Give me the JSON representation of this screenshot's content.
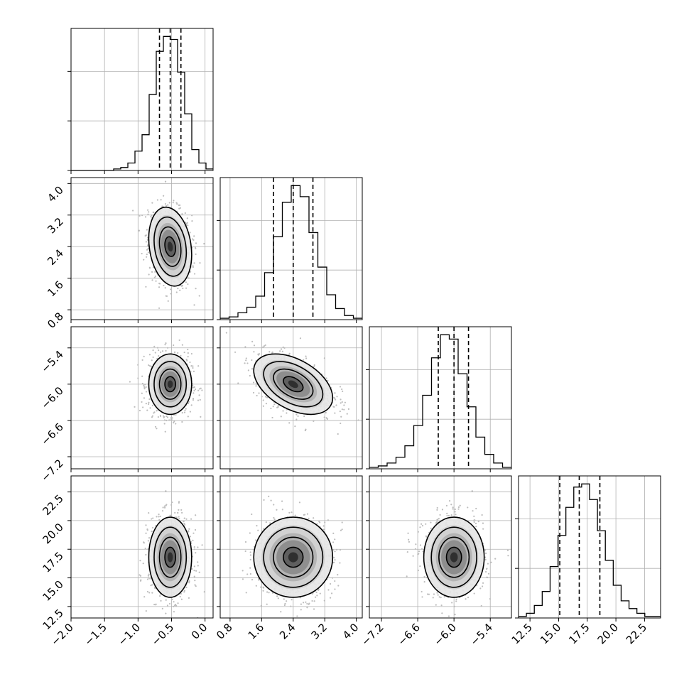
{
  "chart_data": {
    "type": "corner",
    "n_params": 4,
    "params": [
      {
        "ticks": [
          -2.0,
          -1.5,
          -1.0,
          -0.5,
          0.0
        ],
        "tick_labels": [
          "−2.0",
          "−1.5",
          "−1.0",
          "−0.5",
          "0.0"
        ],
        "range": [
          -2.0,
          0.12
        ],
        "median": -0.52,
        "q16": -0.68,
        "q84": -0.36,
        "sigma": 0.16
      },
      {
        "ticks": [
          0.8,
          1.6,
          2.4,
          3.2,
          4.0
        ],
        "tick_labels": [
          "0.8",
          "1.6",
          "2.4",
          "3.2",
          "4.0"
        ],
        "range": [
          0.55,
          4.15
        ],
        "median": 2.4,
        "q16": 1.9,
        "q84": 2.9,
        "sigma": 0.5
      },
      {
        "ticks": [
          -7.2,
          -6.6,
          -6.0,
          -5.4
        ],
        "tick_labels": [
          "−7.2",
          "−6.6",
          "−6.0",
          "−5.4"
        ],
        "range": [
          -7.4,
          -5.05
        ],
        "median": -6.0,
        "q16": -6.26,
        "q84": -5.76,
        "sigma": 0.25
      },
      {
        "ticks": [
          12.5,
          15.0,
          17.5,
          20.0,
          22.5
        ],
        "tick_labels": [
          "12.5",
          "15.0",
          "17.5",
          "20.0",
          "22.5"
        ],
        "range": [
          11.5,
          23.9
        ],
        "median": 16.8,
        "q16": 15.1,
        "q84": 18.6,
        "sigma": 1.75
      }
    ],
    "correlations": [
      [
        1,
        2,
        -0.2
      ],
      [
        1,
        3,
        0.0
      ],
      [
        2,
        3,
        -0.45
      ],
      [
        1,
        4,
        0.0
      ],
      [
        2,
        4,
        0.0
      ],
      [
        3,
        4,
        0.0
      ]
    ],
    "diagonal": [
      {
        "param": 1,
        "bin_lo": -2.0,
        "bin_hi": 0.12,
        "counts": [
          0,
          0,
          0,
          0,
          0,
          0,
          1,
          2,
          5,
          13,
          24,
          51,
          80,
          90,
          88,
          66,
          38,
          14,
          5,
          1
        ]
      },
      {
        "param": 2,
        "bin_lo": 0.55,
        "bin_hi": 4.15,
        "counts": [
          1,
          2,
          5,
          9,
          17,
          34,
          60,
          85,
          97,
          89,
          63,
          38,
          18,
          8,
          3,
          1
        ]
      },
      {
        "param": 3,
        "bin_lo": -7.4,
        "bin_hi": -5.05,
        "counts": [
          1,
          2,
          4,
          8,
          16,
          30,
          51,
          77,
          93,
          90,
          66,
          43,
          22,
          10,
          4,
          1
        ]
      },
      {
        "param": 4,
        "bin_lo": 11.5,
        "bin_hi": 23.9,
        "counts": [
          1,
          3,
          8,
          17,
          33,
          53,
          71,
          84,
          86,
          76,
          56,
          37,
          21,
          11,
          6,
          3,
          1,
          1
        ]
      }
    ],
    "title": "",
    "xlabel": "",
    "ylabel": "",
    "grid": true,
    "legend": "none"
  }
}
